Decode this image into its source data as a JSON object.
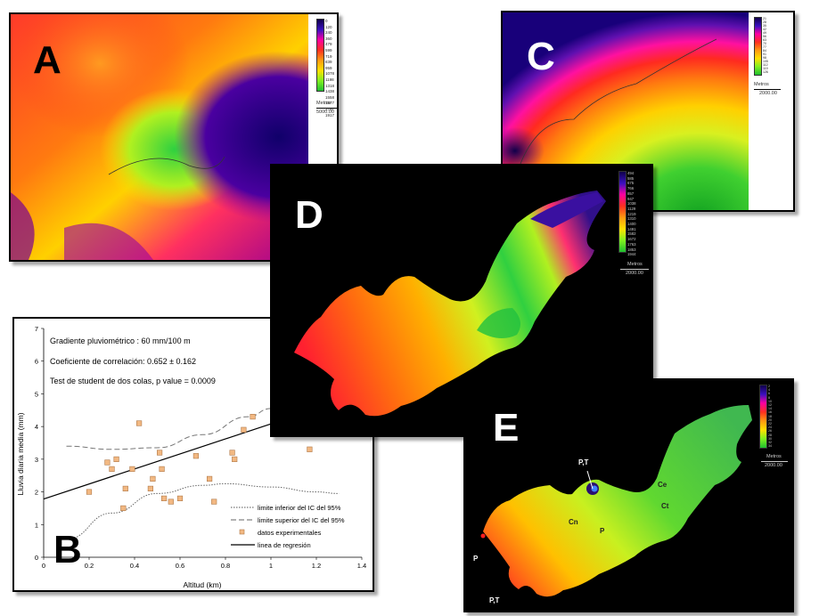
{
  "panels": {
    "A": {
      "letter": "A",
      "legend_values": [
        "0",
        "120",
        "240",
        "360",
        "479",
        "599",
        "719",
        "839",
        "959",
        "1078",
        "1198",
        "1318",
        "1438",
        "1558",
        "1677",
        "1797",
        "1917"
      ],
      "legend_unit": "Metros",
      "legend_scale": "5000.00"
    },
    "C": {
      "letter": "C",
      "legend_values": [
        "21",
        "28",
        "35",
        "42",
        "49",
        "56",
        "63",
        "70",
        "77",
        "84",
        "91",
        "98",
        "105",
        "112",
        "119",
        "126"
      ],
      "legend_unit": "Metros",
      "legend_scale": "2000.00"
    },
    "D": {
      "letter": "D",
      "legend_values": [
        "494",
        "585",
        "675",
        "766",
        "857",
        "947",
        "1038",
        "1129",
        "1219",
        "1310",
        "1400",
        "1491",
        "1582",
        "1672",
        "1763",
        "1853",
        "1944"
      ],
      "legend_unit": "Metros",
      "legend_scale": "2000.00"
    },
    "E": {
      "letter": "E",
      "legend_values": [
        "2",
        "4",
        "6",
        "8",
        "10",
        "12",
        "14",
        "16",
        "18",
        "20",
        "22",
        "24",
        "26",
        "28",
        "30",
        "32",
        "34"
      ],
      "legend_unit": "Metros",
      "legend_scale": "2000.00",
      "sites": {
        "pt_top": "P,T",
        "ce": "Ce",
        "ct": "Ct",
        "cn": "Cn",
        "p_mid": "P",
        "p_left": "P",
        "pt_bottom": "P,T"
      }
    },
    "B": {
      "letter": "B"
    }
  },
  "chart_data": {
    "type": "scatter",
    "xlabel": "Altitud (km)",
    "ylabel": "Lluvia diaria media (mm)",
    "xlim": [
      0,
      1.4
    ],
    "ylim": [
      0,
      7
    ],
    "xticks": [
      "0",
      "0.2",
      "0.4",
      "0.6",
      "0.8",
      "1",
      "1.2",
      "1.4"
    ],
    "yticks": [
      "0",
      "1",
      "2",
      "3",
      "4",
      "5",
      "6",
      "7"
    ],
    "annotations": [
      "Gradiente pluviométrico : 60 mm/100 m",
      "Coeficiente de correlación: 0.652 ± 0.162",
      "Test de student de dos colas, p value = 0.0009"
    ],
    "legend": [
      "limite inferior del IC del 95%",
      "limite superior del IC del 95%",
      "datos experimentales",
      "linea de regresión"
    ],
    "points": [
      {
        "x": 0.2,
        "y": 2.0
      },
      {
        "x": 0.28,
        "y": 2.9
      },
      {
        "x": 0.3,
        "y": 2.7
      },
      {
        "x": 0.32,
        "y": 3.0
      },
      {
        "x": 0.35,
        "y": 1.5
      },
      {
        "x": 0.36,
        "y": 2.1
      },
      {
        "x": 0.39,
        "y": 2.7
      },
      {
        "x": 0.42,
        "y": 4.1
      },
      {
        "x": 0.47,
        "y": 2.1
      },
      {
        "x": 0.48,
        "y": 2.4
      },
      {
        "x": 0.51,
        "y": 3.2
      },
      {
        "x": 0.52,
        "y": 2.7
      },
      {
        "x": 0.53,
        "y": 1.8
      },
      {
        "x": 0.56,
        "y": 1.7
      },
      {
        "x": 0.6,
        "y": 1.8
      },
      {
        "x": 0.67,
        "y": 3.1
      },
      {
        "x": 0.73,
        "y": 2.4
      },
      {
        "x": 0.75,
        "y": 1.7
      },
      {
        "x": 0.83,
        "y": 3.2
      },
      {
        "x": 0.84,
        "y": 3.0
      },
      {
        "x": 0.88,
        "y": 3.9
      },
      {
        "x": 0.92,
        "y": 4.3
      },
      {
        "x": 1.17,
        "y": 3.3
      }
    ],
    "regression": [
      [
        0.0,
        1.78
      ],
      [
        1.4,
        5.0
      ]
    ],
    "lower_ci": [
      [
        0.1,
        0.55
      ],
      [
        0.3,
        1.35
      ],
      [
        0.5,
        1.95
      ],
      [
        0.7,
        2.2
      ],
      [
        0.8,
        2.25
      ],
      [
        1.0,
        2.15
      ],
      [
        1.2,
        2.0
      ],
      [
        1.3,
        1.95
      ]
    ],
    "upper_ci": [
      [
        0.1,
        3.4
      ],
      [
        0.3,
        3.3
      ],
      [
        0.5,
        3.35
      ],
      [
        0.7,
        3.75
      ],
      [
        0.9,
        4.3
      ],
      [
        1.0,
        4.55
      ]
    ]
  }
}
